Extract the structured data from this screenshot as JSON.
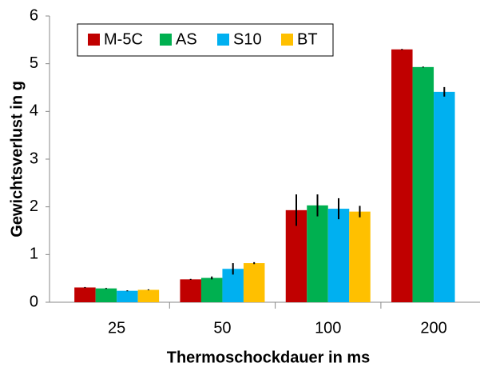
{
  "chart_data": {
    "type": "bar",
    "x_label": "Thermoschockdauer in ms",
    "y_label": "Gewichtsverlust in g",
    "categories": [
      "25",
      "50",
      "100",
      "200"
    ],
    "series": [
      {
        "name": "M-5C",
        "color": "#c00000",
        "values": [
          0.31,
          0.48,
          1.93,
          5.3
        ],
        "errors": [
          0.01,
          0.01,
          0.33,
          0.01
        ]
      },
      {
        "name": "AS",
        "color": "#00b050",
        "values": [
          0.29,
          0.51,
          2.03,
          4.93
        ],
        "errors": [
          0.01,
          0.03,
          0.23,
          0.01
        ]
      },
      {
        "name": "S10",
        "color": "#00b0f0",
        "values": [
          0.24,
          0.7,
          1.96,
          4.41
        ],
        "errors": [
          0.01,
          0.12,
          0.22,
          0.1
        ]
      },
      {
        "name": "BT",
        "color": "#ffc000",
        "values": [
          0.26,
          0.82,
          1.9,
          null
        ],
        "errors": [
          0.01,
          0.02,
          0.12,
          null
        ]
      }
    ],
    "ylim": [
      0,
      6
    ],
    "yticks": [
      0,
      1,
      2,
      3,
      4,
      5,
      6
    ],
    "grid": false,
    "legend": "top-left"
  }
}
